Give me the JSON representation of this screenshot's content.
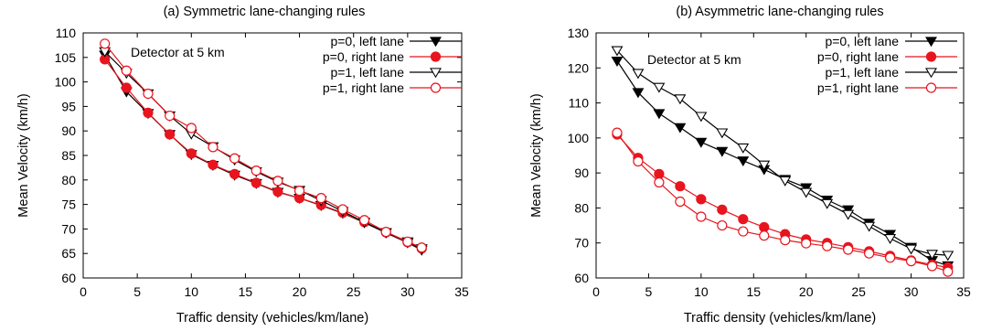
{
  "figure": {
    "background": "#ffffff"
  },
  "chart_data": [
    {
      "type": "line",
      "title": "(a) Symmetric lane-changing rules",
      "xlabel": "Traffic density (vehicles/km/lane)",
      "ylabel": "Mean Velocity (km/h)",
      "xlim": [
        0,
        35
      ],
      "ylim": [
        60,
        110
      ],
      "xticks": [
        "0",
        "5",
        "10",
        "15",
        "20",
        "25",
        "30",
        "35"
      ],
      "yticks": [
        "60",
        "65",
        "70",
        "75",
        "80",
        "85",
        "90",
        "95",
        "100",
        "105",
        "110"
      ],
      "annotation": "Detector at 5 km",
      "grid": false,
      "legend_position": "top-right",
      "series": [
        {
          "name": "p=0, left lane",
          "color": "#000000",
          "marker": "filled-down-triangle",
          "x": [
            2,
            4,
            6,
            8,
            10,
            12,
            14,
            16,
            18,
            20,
            22,
            24,
            26,
            28,
            30,
            31.3
          ],
          "y": [
            105.5,
            98,
            93.6,
            89.3,
            85.2,
            83,
            81,
            79.3,
            77.5,
            76.3,
            74.8,
            73.2,
            71.3,
            69.2,
            67.2,
            65.7
          ]
        },
        {
          "name": "p=0, right lane",
          "color": "#e8141e",
          "marker": "filled-circle",
          "x": [
            2,
            4,
            6,
            8,
            10,
            12,
            14,
            16,
            18,
            20,
            22,
            24,
            26,
            28,
            30,
            31.3
          ],
          "y": [
            104.6,
            98.8,
            93.7,
            89.3,
            85.4,
            83.1,
            81.2,
            79.4,
            77.6,
            76.3,
            74.9,
            73.3,
            71.4,
            69.3,
            67.3,
            66
          ]
        },
        {
          "name": "p=1, left lane",
          "color": "#000000",
          "marker": "open-down-triangle",
          "x": [
            2,
            4,
            6,
            8,
            10,
            12,
            14,
            16,
            18,
            20,
            22,
            24,
            26,
            28,
            30,
            31.3
          ],
          "y": [
            106.2,
            101.8,
            97.6,
            93.1,
            89.4,
            86.8,
            84.1,
            81.7,
            79.6,
            77.9,
            75.8,
            73.6,
            71.4,
            69.3,
            67.4,
            66
          ]
        },
        {
          "name": "p=1, right lane",
          "color": "#e8141e",
          "marker": "open-circle",
          "x": [
            2,
            4,
            6,
            8,
            10,
            12,
            14,
            16,
            18,
            20,
            22,
            24,
            26,
            28,
            30,
            31.3
          ],
          "y": [
            107.8,
            102.3,
            97.6,
            93.1,
            90.6,
            86.7,
            84.4,
            81.9,
            79.8,
            77.8,
            76.3,
            74,
            71.8,
            69.4,
            67.4,
            66.2
          ]
        }
      ]
    },
    {
      "type": "line",
      "title": "(b) Asymmetric lane-changing rules",
      "xlabel": "Traffic density (vehicles/km/lane)",
      "ylabel": "Mean Velocity (km/h)",
      "xlim": [
        0,
        35
      ],
      "ylim": [
        60,
        130
      ],
      "xticks": [
        "0",
        "5",
        "10",
        "15",
        "20",
        "25",
        "30",
        "35"
      ],
      "yticks": [
        "60",
        "70",
        "80",
        "90",
        "100",
        "110",
        "120",
        "130"
      ],
      "annotation": "Detector at 5 km",
      "grid": false,
      "legend_position": "top-right",
      "series": [
        {
          "name": "p=0, left lane",
          "color": "#000000",
          "marker": "filled-down-triangle",
          "x": [
            2,
            4,
            6,
            8,
            10,
            12,
            14,
            16,
            18,
            20,
            22,
            24,
            26,
            28,
            30,
            32,
            33.5
          ],
          "y": [
            122,
            113,
            107,
            103,
            98.8,
            96.2,
            93.5,
            91,
            88.2,
            85.8,
            82.3,
            79.5,
            75.7,
            72.5,
            68.8,
            65,
            63.5
          ]
        },
        {
          "name": "p=0, right lane",
          "color": "#e8141e",
          "marker": "filled-circle",
          "x": [
            2,
            4,
            6,
            8,
            10,
            12,
            14,
            16,
            18,
            20,
            22,
            24,
            26,
            28,
            30,
            32,
            33.5
          ],
          "y": [
            101,
            94.3,
            89.7,
            86.2,
            82.5,
            79.5,
            76.8,
            74.5,
            72.5,
            71,
            70,
            68.8,
            67.6,
            66.3,
            65,
            63.8,
            63
          ]
        },
        {
          "name": "p=1, left lane",
          "color": "#000000",
          "marker": "open-down-triangle",
          "x": [
            2,
            4,
            6,
            8,
            10,
            12,
            14,
            16,
            18,
            20,
            22,
            24,
            26,
            28,
            30,
            32,
            33.5
          ],
          "y": [
            125,
            118.5,
            114.5,
            111.2,
            106.2,
            101.5,
            97.2,
            92.3,
            87.8,
            84.5,
            81.3,
            78.2,
            74.8,
            71.3,
            68.3,
            66.8,
            66.5
          ]
        },
        {
          "name": "p=1, right lane",
          "color": "#e8141e",
          "marker": "open-circle",
          "x": [
            2,
            4,
            6,
            8,
            10,
            12,
            14,
            16,
            18,
            20,
            22,
            24,
            26,
            28,
            30,
            32,
            33.5
          ],
          "y": [
            101.5,
            93.3,
            87.3,
            81.8,
            77.5,
            75,
            73.3,
            72.1,
            70.8,
            69.9,
            69.1,
            68.1,
            67,
            65.8,
            64.8,
            63.4,
            61.8
          ]
        }
      ]
    }
  ]
}
